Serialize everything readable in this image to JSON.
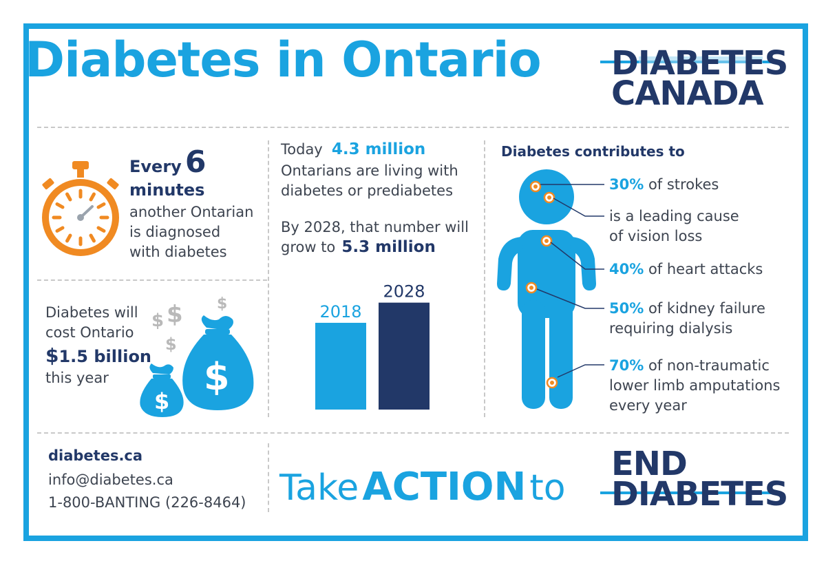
{
  "title": "Diabetes in Ontario",
  "logo": {
    "line1": "DIABETES",
    "line2": "CANADA"
  },
  "stopwatch": {
    "line1_prefix": "Every",
    "line1_number": "6",
    "line2": "minutes",
    "line3": "another Ontarian",
    "line4": "is diagnosed",
    "line5": "with diabetes"
  },
  "cost": {
    "line1": "Diabetes will",
    "line2": "cost Ontario",
    "amount_symbol": "$",
    "amount": "1.5 billion",
    "line4": "this year"
  },
  "today": {
    "prefix": "Today",
    "number": "4.3 million",
    "line2": "Ontarians are living with",
    "line3": "diabetes or prediabetes",
    "line4": "By 2028, that number will",
    "line5_prefix": "grow to",
    "line5_number": "5.3 million"
  },
  "chart_data": {
    "type": "bar",
    "categories": [
      "2018",
      "2028"
    ],
    "values": [
      4.3,
      5.3
    ],
    "colors": [
      "#1aa3e0",
      "#223868"
    ],
    "ylim": [
      0,
      5.8
    ]
  },
  "contributes": {
    "heading": "Diabetes contributes to",
    "items": [
      {
        "pct": "30%",
        "text": "of strokes",
        "text2": ""
      },
      {
        "pct": "",
        "text": "is a leading cause",
        "text2": "of vision loss"
      },
      {
        "pct": "40%",
        "text": "of heart attacks",
        "text2": ""
      },
      {
        "pct": "50%",
        "text": "of kidney failure",
        "text2": "requiring dialysis"
      },
      {
        "pct": "70%",
        "text": "of non-traumatic",
        "text2": "lower limb amputations",
        "text3": "every year"
      }
    ]
  },
  "contact": {
    "website": "diabetes.ca",
    "email": "info@diabetes.ca",
    "phone": "1-800-BANTING (226-8464)"
  },
  "tagline": {
    "part1": "Take",
    "part2": "ACTION",
    "part3": "to"
  },
  "end_logo": {
    "line1": "END",
    "line2": "DIABETES"
  },
  "colors": {
    "accent": "#1aa3e0",
    "dark": "#223868",
    "orange": "#f08a22",
    "gray_icon": "#b9b9b9"
  }
}
